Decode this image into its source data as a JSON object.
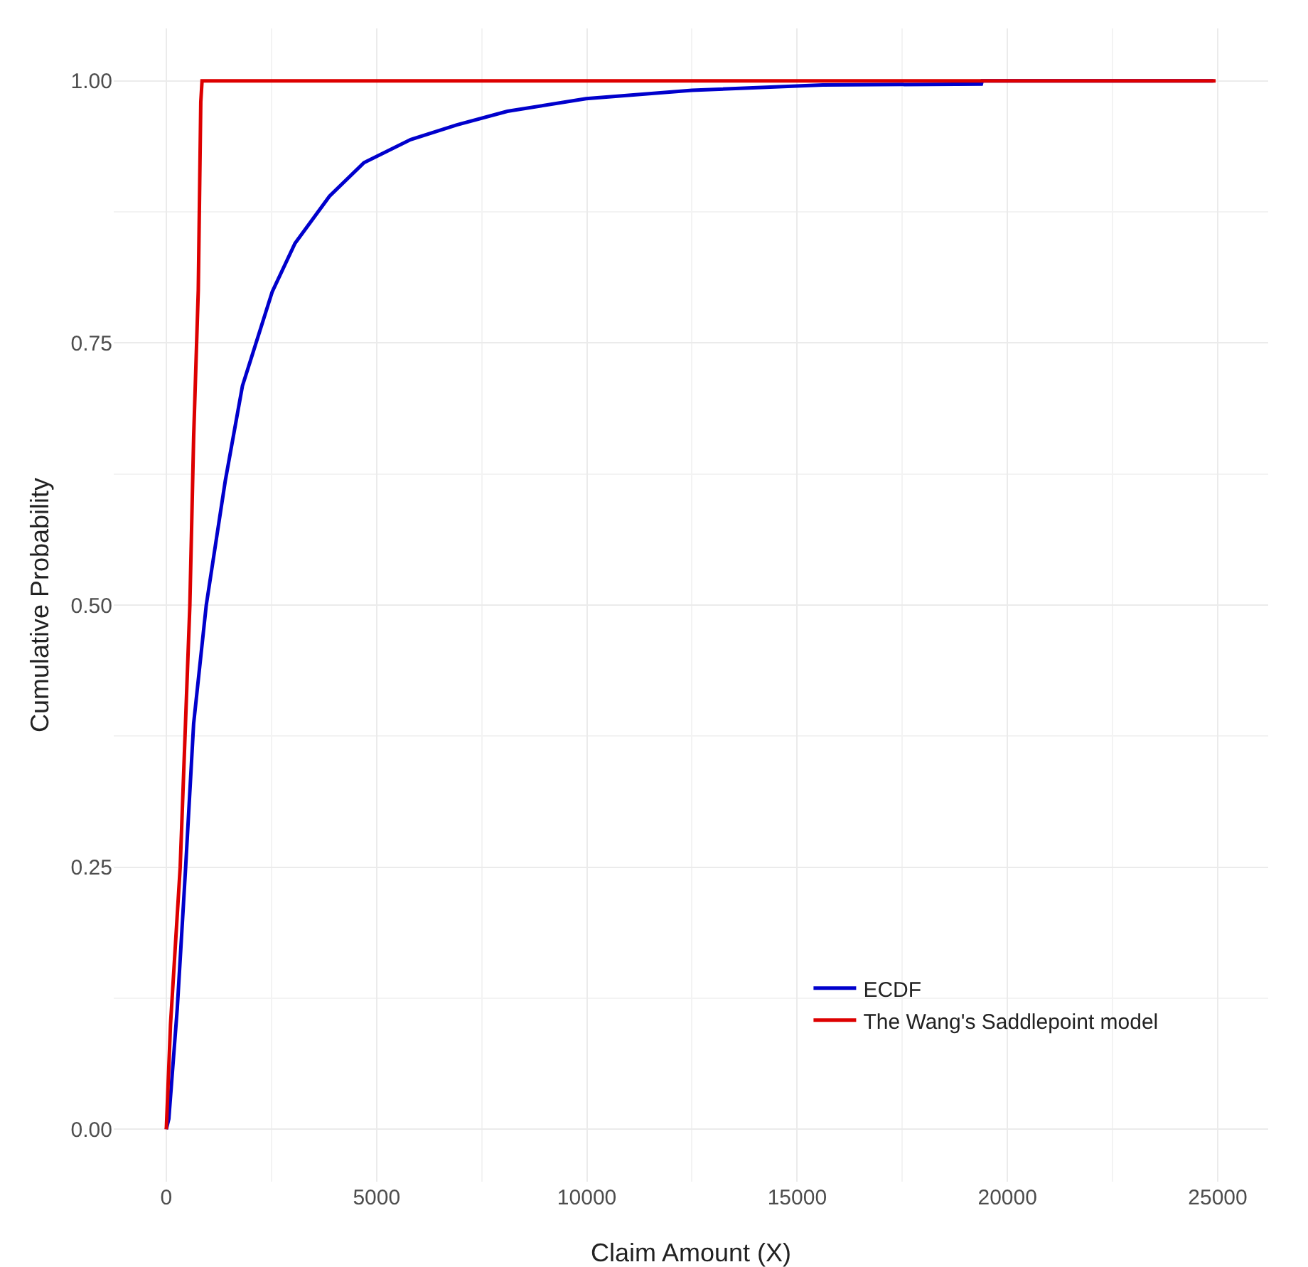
{
  "chart_data": {
    "type": "line",
    "xlabel": "Claim Amount (X)",
    "ylabel": "Cumulative Probability",
    "series": [
      {
        "name": "ECDF",
        "color": "#0000cc",
        "x": [
          0,
          60,
          260,
          460,
          650,
          950,
          1400,
          1810,
          2520,
          3060,
          3880,
          4700,
          5810,
          6910,
          8110,
          9980,
          12500,
          15610,
          19380,
          19400,
          24900
        ],
        "values": [
          0,
          0.01,
          0.115,
          0.25,
          0.387,
          0.5,
          0.618,
          0.709,
          0.799,
          0.845,
          0.89,
          0.922,
          0.944,
          0.958,
          0.971,
          0.983,
          0.991,
          0.996,
          0.997,
          1,
          1
        ]
      },
      {
        "name": "The Wang's Saddlepoint model",
        "color": "#dd0000",
        "x": [
          0,
          100,
          330,
          560,
          650,
          760,
          820,
          850,
          24950
        ],
        "values": [
          0,
          0.1,
          0.25,
          0.5,
          0.66,
          0.8,
          0.98,
          1,
          1
        ]
      }
    ],
    "xlim": [
      -1250,
      26200
    ],
    "ylim": [
      -0.05,
      1.05
    ],
    "xticks": [
      0,
      5000,
      10000,
      15000,
      20000,
      25000
    ],
    "yticks": [
      {
        "value": 0,
        "label": "0.00"
      },
      {
        "value": 0.25,
        "label": "0.25"
      },
      {
        "value": 0.5,
        "label": "0.50"
      },
      {
        "value": 0.75,
        "label": "0.75"
      },
      {
        "value": 1,
        "label": "1.00"
      }
    ],
    "grid": true,
    "legend": "bottom right",
    "marker": "none",
    "line_style": "solid"
  }
}
